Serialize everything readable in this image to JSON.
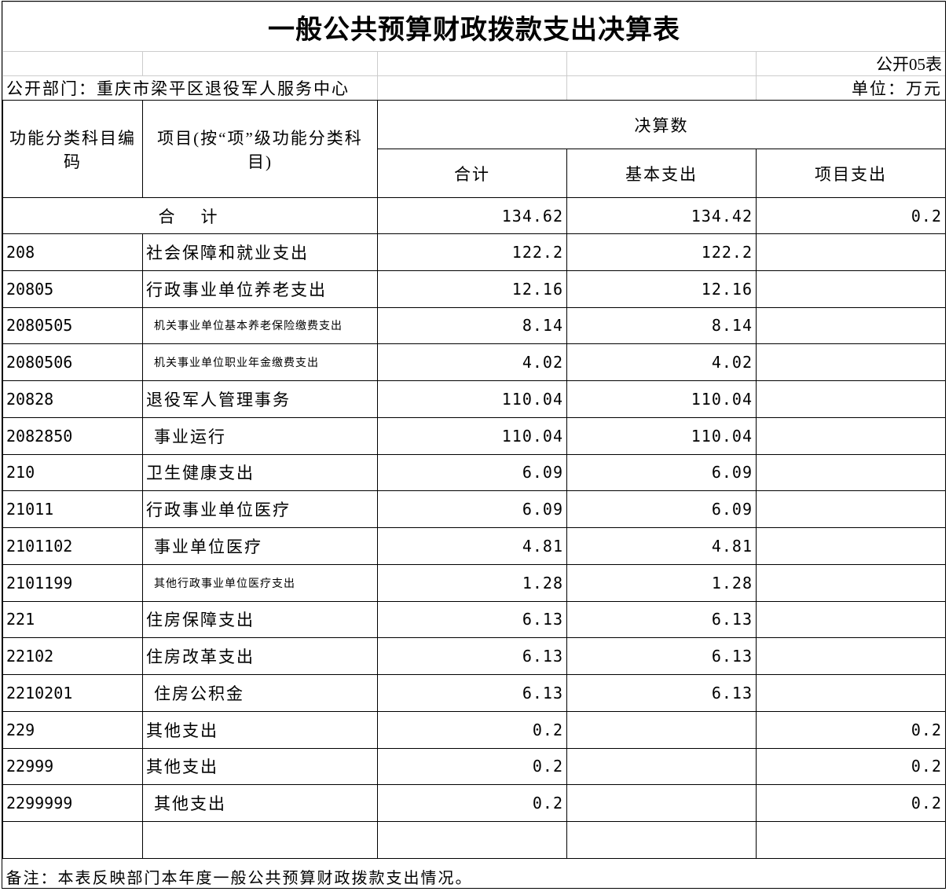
{
  "header": {
    "title": "一般公共预算财政拨款支出决算表",
    "form_no": "公开05表",
    "department": "公开部门：重庆市梁平区退役军人服务中心",
    "unit": "单位：万元"
  },
  "table": {
    "columns": {
      "code": "功能分类科目编码",
      "name": "项目(按“项”级功能分类科目)",
      "amount": "决算数",
      "total": "合计",
      "basic": "基本支出",
      "project": "项目支出"
    },
    "total": {
      "label": "合　计",
      "total": 134.62,
      "basic": 134.42,
      "project": 0.2
    },
    "rows": [
      [
        "208",
        "社会保障和就业支出",
        122.2,
        122.2,
        null
      ],
      [
        "20805",
        "行政事业单位养老支出",
        12.16,
        12.16,
        null
      ],
      [
        "2080505",
        "机关事业单位基本养老保险缴费支出",
        8.14,
        8.14,
        null
      ],
      [
        "2080506",
        "机关事业单位职业年金缴费支出",
        4.02,
        4.02,
        null
      ],
      [
        "20828",
        "退役军人管理事务",
        110.04,
        110.04,
        null
      ],
      [
        "2082850",
        "事业运行",
        110.04,
        110.04,
        null
      ],
      [
        "210",
        "卫生健康支出",
        6.09,
        6.09,
        null
      ],
      [
        "21011",
        "行政事业单位医疗",
        6.09,
        6.09,
        null
      ],
      [
        "2101102",
        "事业单位医疗",
        4.81,
        4.81,
        null
      ],
      [
        "2101199",
        "其他行政事业单位医疗支出",
        1.28,
        1.28,
        null
      ],
      [
        "221",
        "住房保障支出",
        6.13,
        6.13,
        null
      ],
      [
        "22102",
        "住房改革支出",
        6.13,
        6.13,
        null
      ],
      [
        "2210201",
        "住房公积金",
        6.13,
        6.13,
        null
      ],
      [
        "229",
        "其他支出",
        0.2,
        null,
        0.2
      ],
      [
        "22999",
        "其他支出",
        0.2,
        null,
        0.2
      ],
      [
        "2299999",
        "其他支出",
        0.2,
        null,
        0.2
      ]
    ]
  },
  "note": "备注：本表反映部门本年度一般公共预算财政拨款支出情况。"
}
